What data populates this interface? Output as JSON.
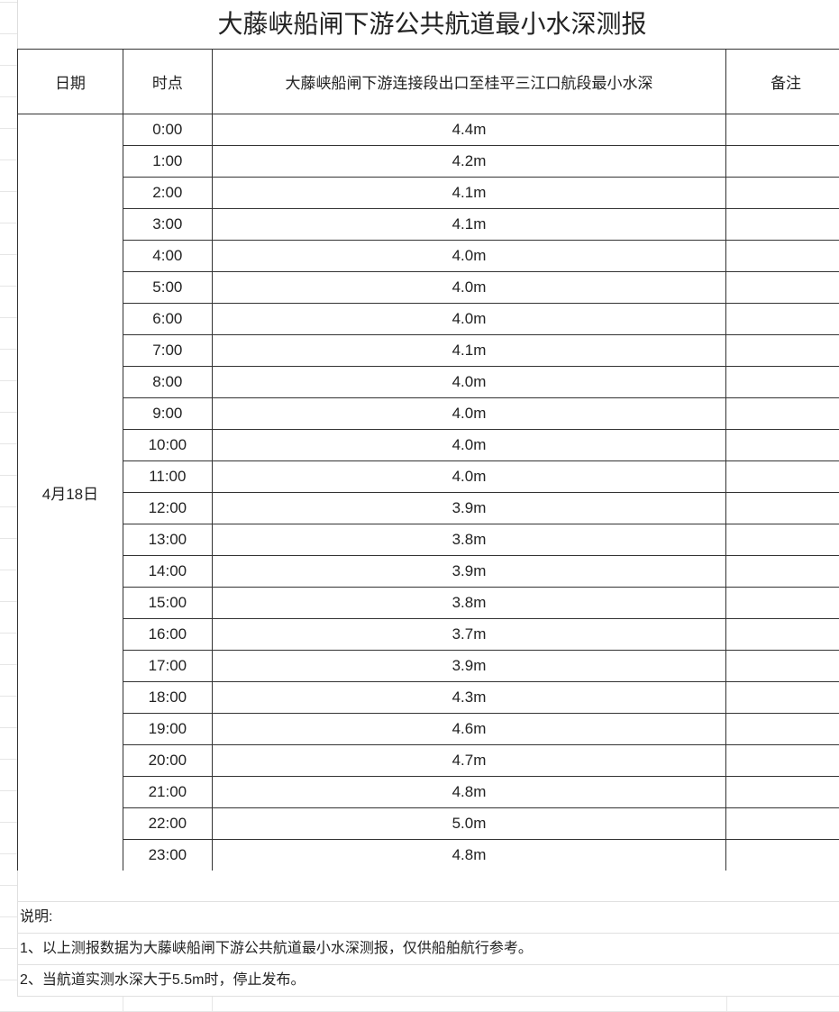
{
  "title": "大藤峡船闸下游公共航道最小水深测报",
  "headers": {
    "date": "日期",
    "time": "时点",
    "depth": "大藤峡船闸下游连接段出口至桂平三江口航段最小水深",
    "remark": "备注"
  },
  "date": "4月18日",
  "rows": [
    {
      "time": "0:00",
      "depth": "4.4m"
    },
    {
      "time": "1:00",
      "depth": "4.2m"
    },
    {
      "time": "2:00",
      "depth": "4.1m"
    },
    {
      "time": "3:00",
      "depth": "4.1m"
    },
    {
      "time": "4:00",
      "depth": "4.0m"
    },
    {
      "time": "5:00",
      "depth": "4.0m"
    },
    {
      "time": "6:00",
      "depth": "4.0m"
    },
    {
      "time": "7:00",
      "depth": "4.1m"
    },
    {
      "time": "8:00",
      "depth": "4.0m"
    },
    {
      "time": "9:00",
      "depth": "4.0m"
    },
    {
      "time": "10:00",
      "depth": "4.0m"
    },
    {
      "time": "11:00",
      "depth": "4.0m"
    },
    {
      "time": "12:00",
      "depth": "3.9m"
    },
    {
      "time": "13:00",
      "depth": "3.8m"
    },
    {
      "time": "14:00",
      "depth": "3.9m"
    },
    {
      "time": "15:00",
      "depth": "3.8m"
    },
    {
      "time": "16:00",
      "depth": "3.7m"
    },
    {
      "time": "17:00",
      "depth": "3.9m"
    },
    {
      "time": "18:00",
      "depth": "4.3m"
    },
    {
      "time": "19:00",
      "depth": "4.6m"
    },
    {
      "time": "20:00",
      "depth": "4.7m"
    },
    {
      "time": "21:00",
      "depth": "4.8m"
    },
    {
      "time": "22:00",
      "depth": "5.0m"
    },
    {
      "time": "23:00",
      "depth": "4.8m"
    }
  ],
  "notes": {
    "heading": "说明:",
    "items": [
      "1、以上测报数据为大藤峡船闸下游公共航道最小水深测报，仅供船舶航行参考。",
      "2、当航道实测水深大于5.5m时，停止发布。"
    ]
  }
}
